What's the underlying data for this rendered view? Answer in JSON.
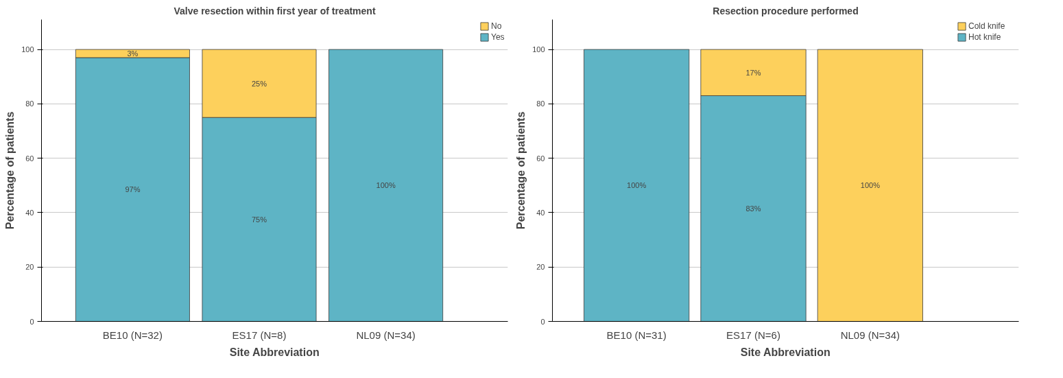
{
  "chart_data": [
    {
      "type": "bar",
      "title": "Valve resection within first year of treatment",
      "xlabel": "Site Abbreviation",
      "ylabel": "Percentage of patients",
      "categories": [
        "BE10 (N=32)",
        "ES17 (N=8)",
        "NL09 (N=34)"
      ],
      "stacked": true,
      "ylim": [
        0,
        111
      ],
      "yticks": [
        0,
        20,
        40,
        60,
        80,
        100
      ],
      "grid": "y",
      "legend": "top right",
      "series": [
        {
          "name": "Yes",
          "color": "#5eb4c5",
          "values": [
            97,
            75,
            100
          ],
          "value_labels": [
            "97%",
            "75%",
            "100%"
          ]
        },
        {
          "name": "No",
          "color": "#fdd05c",
          "values": [
            3,
            25,
            null
          ],
          "value_labels": [
            "3%",
            "25%",
            null
          ]
        }
      ]
    },
    {
      "type": "bar",
      "title": "Resection procedure performed",
      "xlabel": "Site Abbreviation",
      "ylabel": "Percentage of patients",
      "categories": [
        "BE10 (N=31)",
        "ES17 (N=6)",
        "NL09 (N=34)"
      ],
      "stacked": true,
      "ylim": [
        0,
        111
      ],
      "yticks": [
        0,
        20,
        40,
        60,
        80,
        100
      ],
      "grid": "y",
      "legend": "top right",
      "series": [
        {
          "name": "Hot knife",
          "color": "#5eb4c5",
          "values": [
            100,
            83,
            null
          ],
          "value_labels": [
            "100%",
            "83%",
            null
          ]
        },
        {
          "name": "Cold knife",
          "color": "#fdd05c",
          "values": [
            null,
            17,
            100
          ],
          "value_labels": [
            null,
            "17%",
            "100%"
          ]
        }
      ]
    }
  ]
}
